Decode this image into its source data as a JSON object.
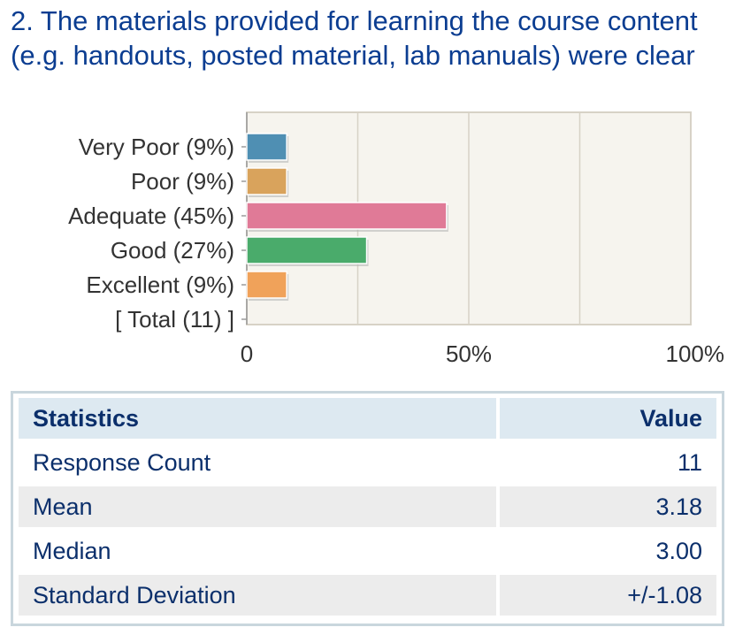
{
  "question": {
    "title": "2. The materials provided for learning the course content (e.g. handouts, posted material, lab manuals) were clear"
  },
  "chart_data": {
    "type": "bar",
    "orientation": "horizontal",
    "categories": [
      "Very Poor (9%)",
      "Poor (9%)",
      "Adequate (45%)",
      "Good (27%)",
      "Excellent (9%)",
      "[ Total (11) ]"
    ],
    "values": [
      9,
      9,
      45,
      27,
      9,
      null
    ],
    "colors": [
      "#4f8fb3",
      "#d9a35c",
      "#e07a97",
      "#4aab6b",
      "#f0a25a",
      null
    ],
    "xlim": [
      0,
      100
    ],
    "xticks": [
      "0",
      "50%",
      "100%"
    ],
    "xtick_values": [
      0,
      50,
      100
    ],
    "grid": true,
    "plot_background": "#f6f4ee",
    "gridline_color": "#d7d2c6"
  },
  "stats": {
    "header": {
      "label": "Statistics",
      "value": "Value"
    },
    "rows": [
      {
        "label": "Response Count",
        "value": "11"
      },
      {
        "label": "Mean",
        "value": "3.18"
      },
      {
        "label": "Median",
        "value": "3.00"
      },
      {
        "label": "Standard Deviation",
        "value": "+/-1.08"
      }
    ],
    "colors": {
      "header_bg": "#dde9f1",
      "alt_row_bg": "#ececec",
      "text": "#0b2f6b",
      "border": "#c9d6dd"
    }
  }
}
